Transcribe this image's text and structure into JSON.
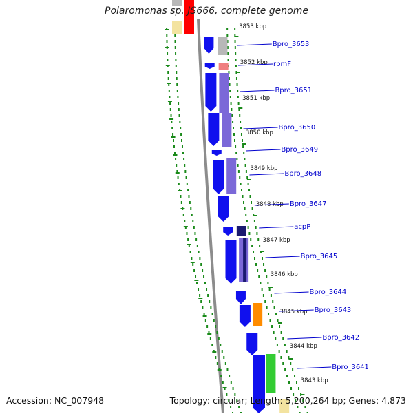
{
  "title": "Polaromonas sp. JS666, complete genome",
  "accession": "Accession: NC_007948",
  "summary": "Topology: circular; Length: 5,200,264 bp; Genes: 4,873",
  "kbp_labels": [
    "3853 kbp",
    "3852 kbp",
    "3851 kbp",
    "3850 kbp",
    "3849 kbp",
    "3848 kbp",
    "3847 kbp",
    "3846 kbp",
    "3845 kbp",
    "3844 kbp",
    "3843 kbp"
  ],
  "gene_labels": [
    "Bpro_3653",
    "rpmF",
    "Bpro_3651",
    "Bpro_3650",
    "Bpro_3649",
    "Bpro_3648",
    "Bpro_3647",
    "acpP",
    "Bpro_3645",
    "Bpro_3644",
    "Bpro_3643",
    "Bpro_3642",
    "Bpro_3641"
  ],
  "colors": {
    "strand": "#1010ee",
    "backbone": "#8c8c8c",
    "tick": "#1a8a1a",
    "label_line": "#0000cc",
    "cog_purple": "#7b68d8",
    "cog_navy": "#1a1a70",
    "cog_gray": "#b8b8b8",
    "cog_red": "#ff0000",
    "cog_pink": "#f08080",
    "cog_yellow": "#f3e3a0",
    "cog_orange": "#ff8c00",
    "cog_green": "#33cc33"
  }
}
